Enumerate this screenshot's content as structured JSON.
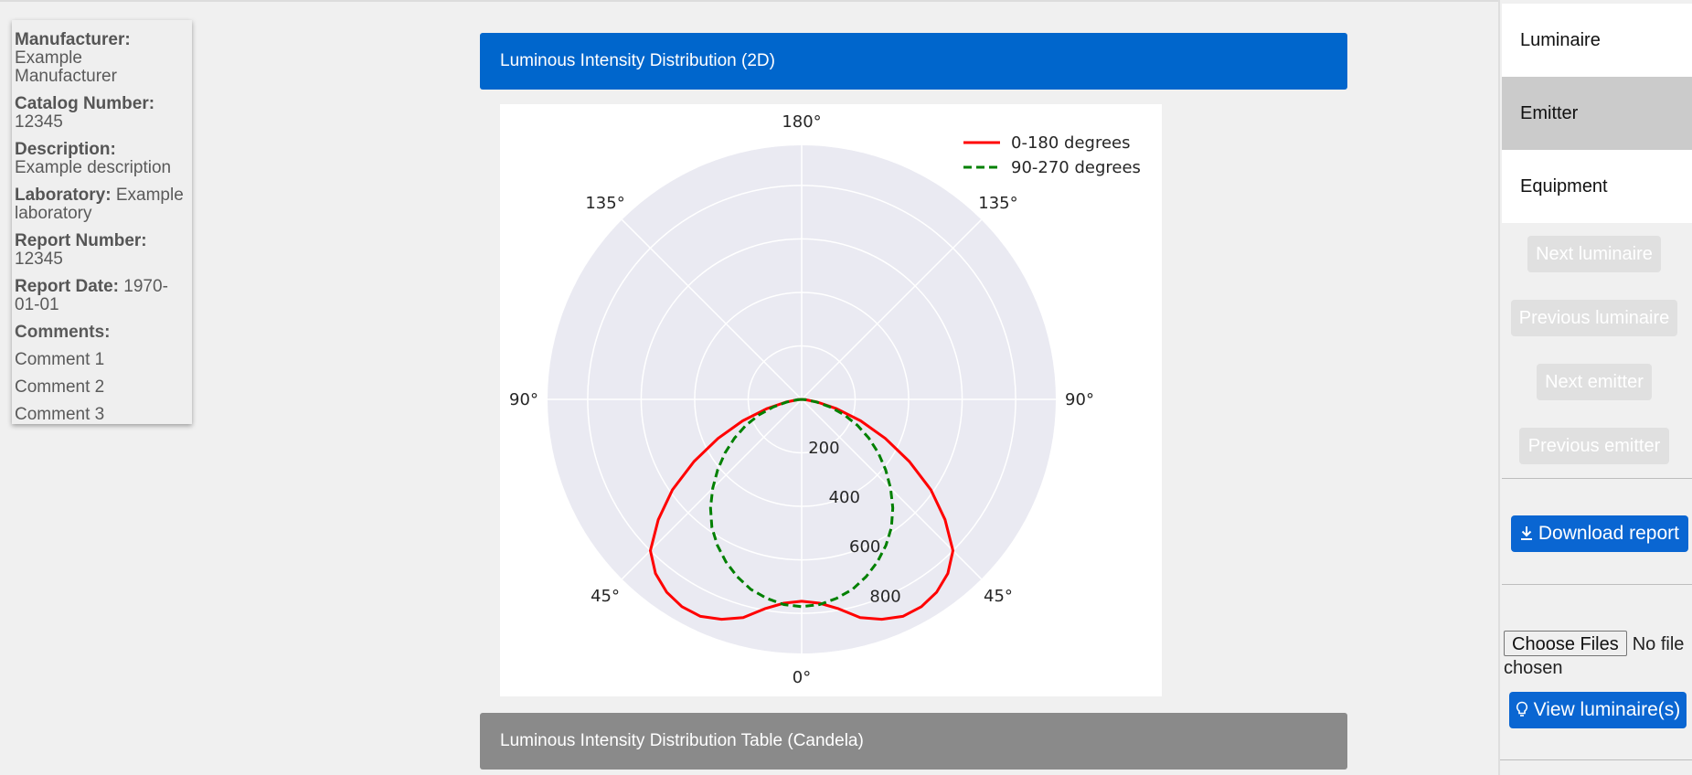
{
  "info": {
    "manufacturer_label": "Manufacturer:",
    "manufacturer_value": "Example Manufacturer",
    "catalog_label": "Catalog Number:",
    "catalog_value": "12345",
    "description_label": "Description:",
    "description_value": "Example description",
    "laboratory_label": "Laboratory:",
    "laboratory_value": "Example laboratory",
    "report_number_label": "Report Number:",
    "report_number_value": "12345",
    "report_date_label": "Report Date:",
    "report_date_value": "1970-01-01",
    "comments_label": "Comments:",
    "comments": [
      "Comment 1",
      "Comment 2",
      "Comment 3"
    ]
  },
  "main": {
    "chart_header": "Luminous Intensity Distribution (2D)",
    "table_header": "Luminous Intensity Distribution Table (Candela)"
  },
  "sidebar": {
    "tabs": [
      "Luminaire",
      "Emitter",
      "Equipment"
    ],
    "active_tab": "Emitter",
    "next_luminaire": "Next luminaire",
    "previous_luminaire": "Previous luminaire",
    "next_emitter": "Next emitter",
    "previous_emitter": "Previous emitter",
    "download_icon": "download-icon",
    "download_report": "Download report",
    "choose_files": "Choose Files",
    "no_file": "No file chosen",
    "bulb_icon": "lightbulb-icon",
    "view_luminaires": "View luminaire(s)"
  },
  "chart_data": {
    "type": "polar-line",
    "angle_ticks": [
      "0°",
      "45°",
      "90°",
      "135°",
      "180°",
      "135°",
      "90°",
      "45°"
    ],
    "radial_ticks": [
      200,
      400,
      600,
      800
    ],
    "rlim": [
      0,
      950
    ],
    "grid": true,
    "legend_position": "top-right",
    "series": [
      {
        "name": "0-180 degrees",
        "color": "#ff0000",
        "style": "solid",
        "angles": [
          0,
          5,
          10,
          15,
          20,
          25,
          30,
          35,
          40,
          45,
          50,
          55,
          60,
          65,
          70,
          75,
          80,
          85,
          90
        ],
        "values": [
          755,
          765,
          795,
          845,
          875,
          895,
          895,
          880,
          850,
          800,
          700,
          590,
          465,
          345,
          235,
          135,
          60,
          15,
          0
        ]
      },
      {
        "name": "90-270 degrees",
        "color": "#008000",
        "style": "dashed",
        "angles": [
          0,
          5,
          10,
          15,
          20,
          25,
          30,
          35,
          40,
          45,
          50,
          55,
          60,
          65,
          70,
          75,
          80,
          85,
          90
        ],
        "values": [
          775,
          770,
          755,
          735,
          705,
          670,
          630,
          585,
          530,
          470,
          410,
          350,
          290,
          230,
          170,
          110,
          55,
          15,
          0
        ]
      }
    ]
  }
}
